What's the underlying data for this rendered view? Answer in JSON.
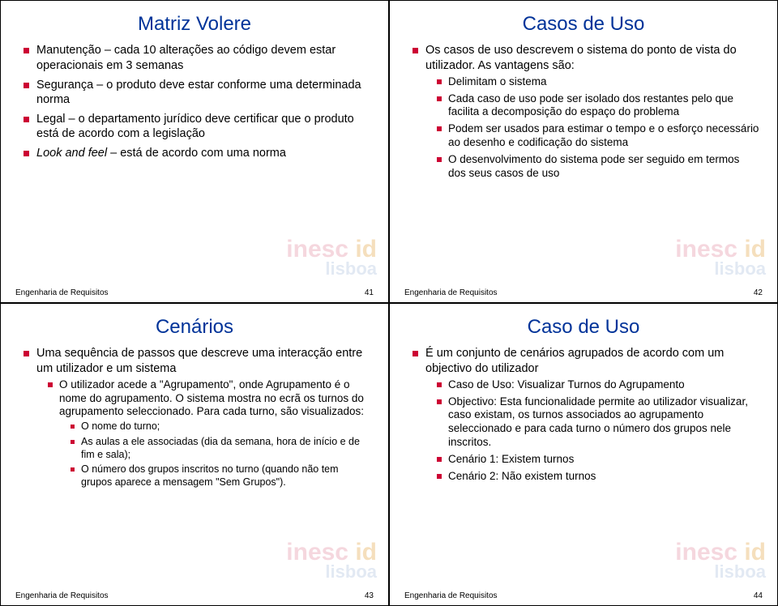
{
  "footer_label": "Engenharia de Requisitos",
  "watermark": {
    "line1a": "inesc",
    "line1b": " id",
    "line2": "lisboa"
  },
  "slides": [
    {
      "number": "41",
      "title": "Matriz Volere",
      "lvl1": [
        {
          "text": "Manutenção – cada 10 alterações ao código devem estar operacionais em 3 semanas"
        },
        {
          "text": "Segurança – o produto deve estar conforme uma determinada norma"
        },
        {
          "text": "Legal – o departamento jurídico deve certificar que o produto está de acordo com a legislação"
        },
        {
          "text_html": "<span class=\"italic\">Look and feel</span> – está de acordo com uma norma"
        }
      ]
    },
    {
      "number": "42",
      "title": "Casos de Uso",
      "lvl1": [
        {
          "text": "Os casos de uso descrevem o sistema do ponto de vista do utilizador. As vantagens são:",
          "lvl2": [
            {
              "text": "Delimitam o sistema"
            },
            {
              "text": "Cada caso de uso pode ser isolado dos restantes pelo que facilita a decomposição do espaço do problema"
            },
            {
              "text": "Podem ser usados para estimar o tempo e o esforço necessário ao desenho e codificação do sistema"
            },
            {
              "text": "O desenvolvimento do sistema pode ser seguido em termos dos seus casos de uso"
            }
          ]
        }
      ]
    },
    {
      "number": "43",
      "title": "Cenários",
      "lvl1": [
        {
          "text": "Uma sequência de passos que descreve uma interacção entre um utilizador e um sistema",
          "lvl2": [
            {
              "text": "O utilizador acede a \"Agrupamento\", onde Agrupamento é o nome do agrupamento. O sistema mostra no ecrã os turnos do agrupamento seleccionado. Para cada turno, são visualizados:",
              "lvl3": [
                {
                  "text": "O nome do turno;"
                },
                {
                  "text": "As aulas a ele associadas (dia da semana, hora de início e de fim e sala);"
                },
                {
                  "text": "O número dos grupos inscritos no turno (quando não tem grupos aparece a mensagem \"Sem Grupos\")."
                }
              ]
            }
          ]
        }
      ]
    },
    {
      "number": "44",
      "title": "Caso de Uso",
      "lvl1": [
        {
          "text": "É um conjunto de cenários agrupados de acordo com um objectivo do utilizador",
          "lvl2": [
            {
              "text": "Caso de Uso: Visualizar Turnos do Agrupamento"
            },
            {
              "text": "Objectivo: Esta funcionalidade permite ao utilizador visualizar, caso existam, os turnos associados ao agrupamento seleccionado e para cada turno o número dos grupos nele inscritos."
            },
            {
              "text": "Cenário 1: Existem turnos"
            },
            {
              "text": "Cenário 2: Não existem turnos"
            }
          ]
        }
      ]
    }
  ]
}
